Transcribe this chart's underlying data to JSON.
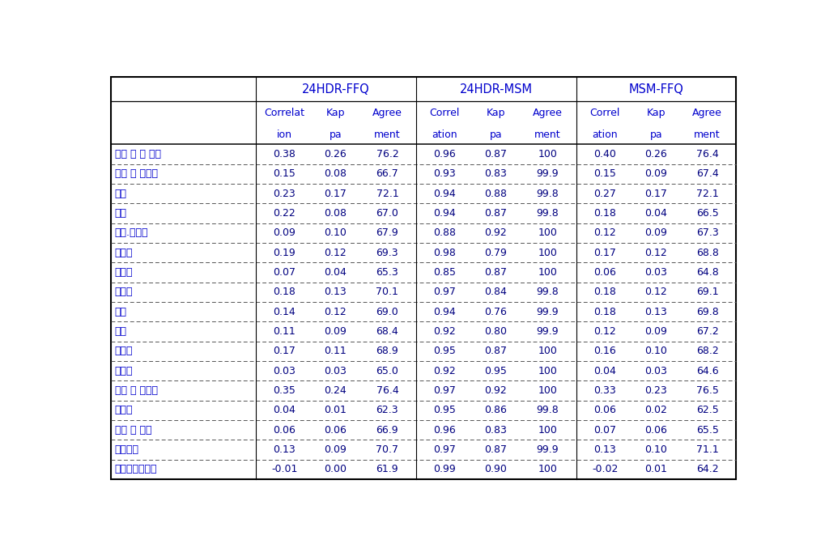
{
  "group_headers": [
    "24HDR-FFQ",
    "24HDR-MSM",
    "MSM-FFQ"
  ],
  "col_headers_line1": [
    "Correlat",
    "Kap",
    "Agree",
    "Correl",
    "Kap",
    "Agree",
    "Correl",
    "Kap",
    "Agree"
  ],
  "col_headers_line2": [
    "ion",
    "pa",
    "ment",
    "ation",
    "pa",
    "ment",
    "ation",
    "pa",
    "ment"
  ],
  "row_labels": [
    "곱류 및 싸 제품",
    "감자 및 전분류",
    "당류",
    "두류",
    "견과.종실류",
    "채소류",
    "버섹류",
    "과일류",
    "육류",
    "난류",
    "어패류",
    "해조류",
    "우유 및 유제품",
    "유지류",
    "음료 및 주류",
    "조미료류",
    "조리가공식품류"
  ],
  "data": [
    [
      0.38,
      0.26,
      76.2,
      0.96,
      0.87,
      100,
      0.4,
      0.26,
      76.4
    ],
    [
      0.15,
      0.08,
      66.7,
      0.93,
      0.83,
      99.9,
      0.15,
      0.09,
      67.4
    ],
    [
      0.23,
      0.17,
      72.1,
      0.94,
      0.88,
      99.8,
      0.27,
      0.17,
      72.1
    ],
    [
      0.22,
      0.08,
      67.0,
      0.94,
      0.87,
      99.8,
      0.18,
      0.04,
      66.5
    ],
    [
      0.09,
      0.1,
      67.9,
      0.88,
      0.92,
      100,
      0.12,
      0.09,
      67.3
    ],
    [
      0.19,
      0.12,
      69.3,
      0.98,
      0.79,
      100,
      0.17,
      0.12,
      68.8
    ],
    [
      0.07,
      0.04,
      65.3,
      0.85,
      0.87,
      100,
      0.06,
      0.03,
      64.8
    ],
    [
      0.18,
      0.13,
      70.1,
      0.97,
      0.84,
      99.8,
      0.18,
      0.12,
      69.1
    ],
    [
      0.14,
      0.12,
      69.0,
      0.94,
      0.76,
      99.9,
      0.18,
      0.13,
      69.8
    ],
    [
      0.11,
      0.09,
      68.4,
      0.92,
      0.8,
      99.9,
      0.12,
      0.09,
      67.2
    ],
    [
      0.17,
      0.11,
      68.9,
      0.95,
      0.87,
      100,
      0.16,
      0.1,
      68.2
    ],
    [
      0.03,
      0.03,
      65.0,
      0.92,
      0.95,
      100,
      0.04,
      0.03,
      64.6
    ],
    [
      0.35,
      0.24,
      76.4,
      0.97,
      0.92,
      100,
      0.33,
      0.23,
      76.5
    ],
    [
      0.04,
      0.01,
      62.3,
      0.95,
      0.86,
      99.8,
      0.06,
      0.02,
      62.5
    ],
    [
      0.06,
      0.06,
      66.9,
      0.96,
      0.83,
      100,
      0.07,
      0.06,
      65.5
    ],
    [
      0.13,
      0.09,
      70.7,
      0.97,
      0.87,
      99.9,
      0.13,
      0.1,
      71.1
    ],
    [
      -0.01,
      0.0,
      61.9,
      0.99,
      0.9,
      100,
      -0.02,
      0.01,
      64.2
    ]
  ],
  "text_color_label": "#0000cd",
  "text_color_data": "#000080",
  "text_color_header": "#0000cd",
  "bg_color": "#ffffff",
  "border_color": "#000000",
  "fig_width": 10.2,
  "fig_height": 6.72,
  "dpi": 100,
  "font_size_header_group": 10.5,
  "font_size_header_col": 9.0,
  "font_size_row_label": 9.0,
  "font_size_data": 9.0
}
